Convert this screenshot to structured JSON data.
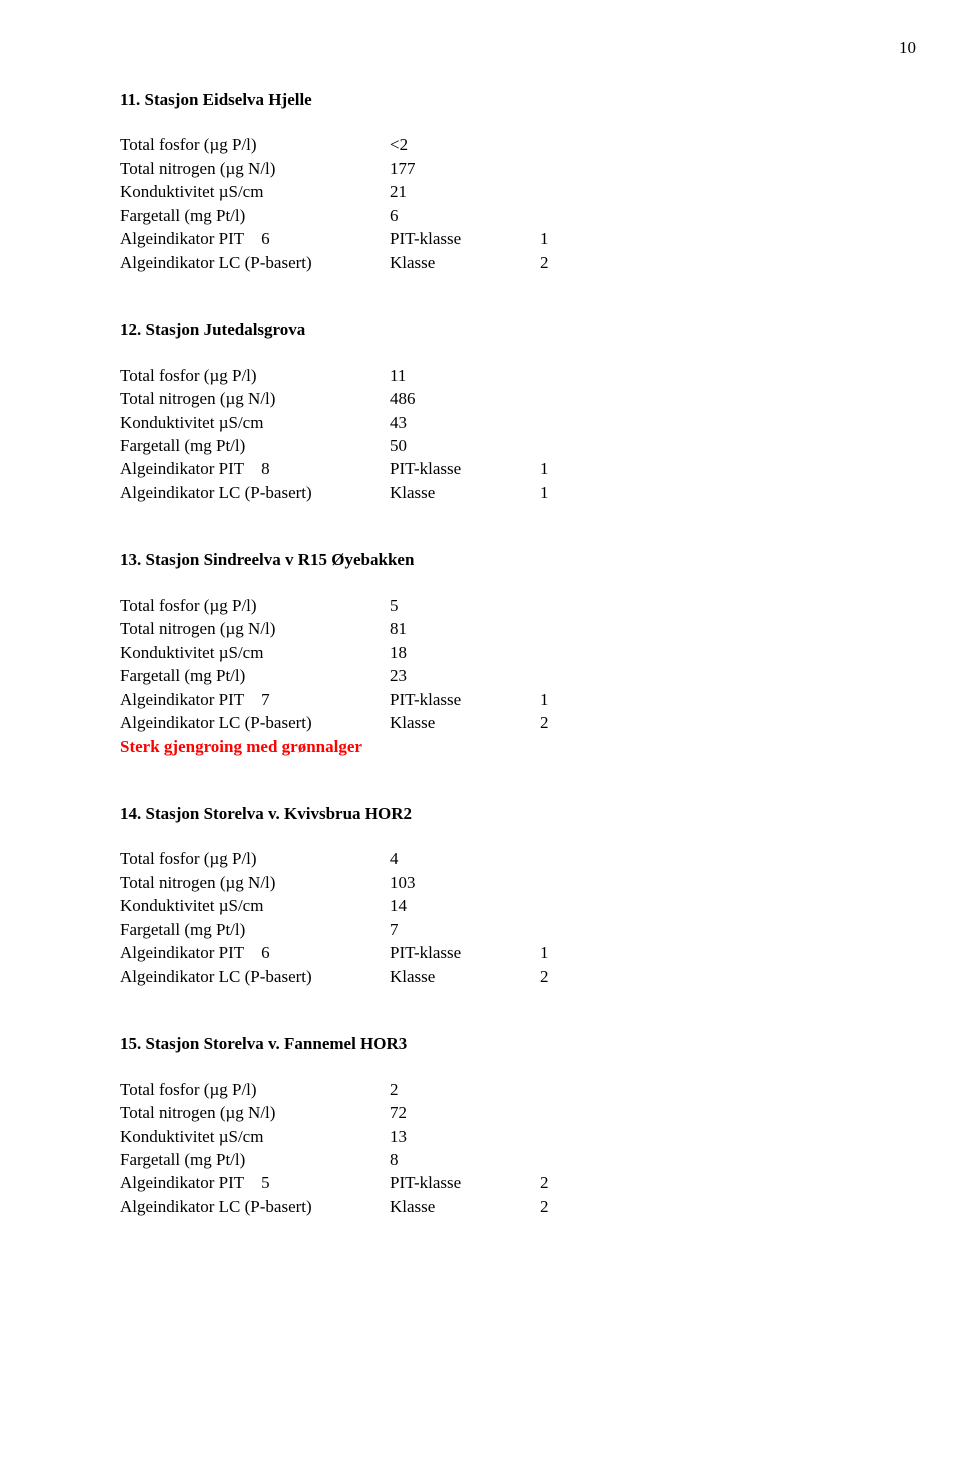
{
  "page_number": "10",
  "stations": [
    {
      "title": "11. Stasjon Eidselva Hjelle",
      "rows": [
        {
          "label": "Total fosfor (µg P/l)",
          "value": "<2"
        },
        {
          "label": "Total nitrogen (µg N/l)",
          "value": "177"
        },
        {
          "label": "Konduktivitet µS/cm",
          "value": "21"
        },
        {
          "label": "Fargetall (mg Pt/l)",
          "value": "6"
        }
      ],
      "pit_label": "Algeindikator PIT",
      "pit_value": "6",
      "pit_klasse_label": "PIT-klasse",
      "pit_klasse_value": "1",
      "lc_label": "Algeindikator LC (P-basert)",
      "lc_klasse_label": "Klasse",
      "lc_klasse_value": "2"
    },
    {
      "title": "12. Stasjon Jutedalsgrova",
      "rows": [
        {
          "label": "Total fosfor (µg P/l)",
          "value": "11"
        },
        {
          "label": "Total nitrogen (µg N/l)",
          "value": "486"
        },
        {
          "label": "Konduktivitet µS/cm",
          "value": "43"
        },
        {
          "label": "Fargetall (mg Pt/l)",
          "value": "50"
        }
      ],
      "pit_label": "Algeindikator PIT",
      "pit_value": "8",
      "pit_klasse_label": "PIT-klasse",
      "pit_klasse_value": "1",
      "lc_label": "Algeindikator LC (P-basert)",
      "lc_klasse_label": "Klasse",
      "lc_klasse_value": "1"
    },
    {
      "title": "13. Stasjon Sindreelva v R15 Øyebakken",
      "rows": [
        {
          "label": "Total fosfor (µg P/l)",
          "value": "5"
        },
        {
          "label": "Total nitrogen (µg N/l)",
          "value": "81"
        },
        {
          "label": "Konduktivitet µS/cm",
          "value": "18"
        },
        {
          "label": "Fargetall (mg Pt/l)",
          "value": "23"
        }
      ],
      "pit_label": "Algeindikator PIT",
      "pit_value": "7",
      "pit_klasse_label": "PIT-klasse",
      "pit_klasse_value": "1",
      "lc_label": "Algeindikator LC (P-basert)",
      "lc_klasse_label": "Klasse",
      "lc_klasse_value": "2",
      "note": "Sterk gjengroing med grønnalger"
    },
    {
      "title": "14. Stasjon Storelva v. Kvivsbrua HOR2",
      "rows": [
        {
          "label": "Total fosfor (µg P/l)",
          "value": "4"
        },
        {
          "label": "Total nitrogen (µg N/l)",
          "value": "103"
        },
        {
          "label": "Konduktivitet µS/cm",
          "value": "14"
        },
        {
          "label": "Fargetall (mg Pt/l)",
          "value": "7"
        }
      ],
      "pit_label": "Algeindikator PIT",
      "pit_value": "6",
      "pit_klasse_label": "PIT-klasse",
      "pit_klasse_value": "1",
      "lc_label": "Algeindikator LC (P-basert)",
      "lc_klasse_label": "Klasse",
      "lc_klasse_value": "2"
    },
    {
      "title": "15. Stasjon Storelva v. Fannemel HOR3",
      "rows": [
        {
          "label": "Total fosfor (µg P/l)",
          "value": "2"
        },
        {
          "label": "Total nitrogen (µg N/l)",
          "value": "72"
        },
        {
          "label": "Konduktivitet µS/cm",
          "value": "13"
        },
        {
          "label": "Fargetall (mg Pt/l)",
          "value": "8"
        }
      ],
      "pit_label": "Algeindikator PIT",
      "pit_value": "5",
      "pit_klasse_label": "PIT-klasse",
      "pit_klasse_value": "2",
      "lc_label": "Algeindikator LC (P-basert)",
      "lc_klasse_label": "Klasse",
      "lc_klasse_value": "2"
    }
  ]
}
